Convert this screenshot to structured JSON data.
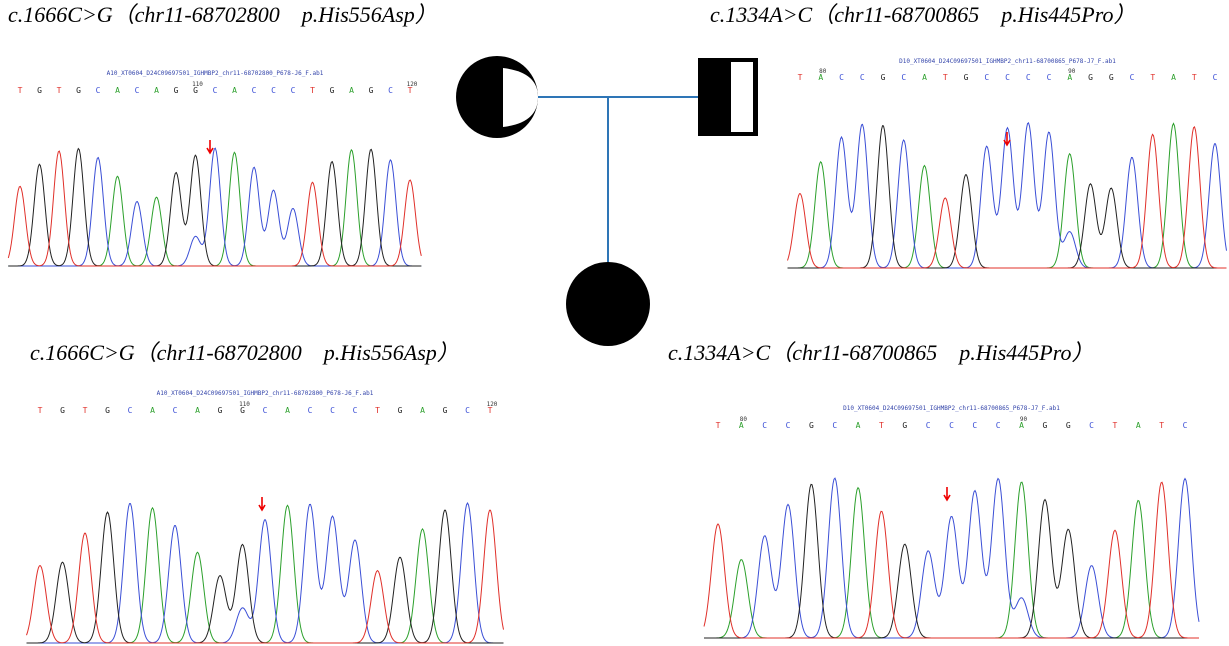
{
  "panels": [
    {
      "caption": "c.1666C>G（chr11-68702800　p.His556Asp）",
      "file": "A10_XT0604_D24C09697501_IGHMBP2_chr11-68702800_P678-J6_F.ab1",
      "bases": [
        "T",
        "G",
        "T",
        "G",
        "C",
        "A",
        "C",
        "A",
        "G",
        "G",
        "C",
        "A",
        "C",
        "C",
        "C",
        "T",
        "G",
        "A",
        "G",
        "C",
        "T"
      ],
      "markers": [
        110,
        120
      ]
    },
    {
      "caption": "c.1334A>C（chr11-68700865　p.His445Pro）",
      "file": "D10_XT0604_D24C09697501_IGHMBP2_chr11-68700865_P678-J7_F.ab1",
      "bases": [
        "T",
        "A",
        "C",
        "C",
        "G",
        "C",
        "A",
        "T",
        "G",
        "C",
        "C",
        "C",
        "C",
        "A",
        "G",
        "G",
        "C",
        "T",
        "A",
        "T",
        "C"
      ],
      "markers": [
        80,
        90
      ]
    },
    {
      "caption": "c.1666C>G（chr11-68702800　p.His556Asp）",
      "file": "A10_XT0604_D24C09697501_IGHMBP2_chr11-68702800_P678-J6_F.ab1",
      "bases": [
        "T",
        "G",
        "T",
        "G",
        "C",
        "A",
        "C",
        "A",
        "G",
        "G",
        "C",
        "A",
        "C",
        "C",
        "C",
        "T",
        "G",
        "A",
        "G",
        "C",
        "T"
      ],
      "markers": [
        110,
        120
      ]
    },
    {
      "caption": "c.1334A>C（chr11-68700865　p.His445Pro）",
      "file": "D10_XT0604_D24C09697501_IGHMBP2_chr11-68700865_P678-J7_F.ab1",
      "bases": [
        "T",
        "A",
        "C",
        "C",
        "G",
        "C",
        "A",
        "T",
        "G",
        "C",
        "C",
        "C",
        "C",
        "A",
        "G",
        "G",
        "C",
        "T",
        "A",
        "T",
        "C"
      ],
      "markers": [
        80,
        90
      ]
    }
  ]
}
